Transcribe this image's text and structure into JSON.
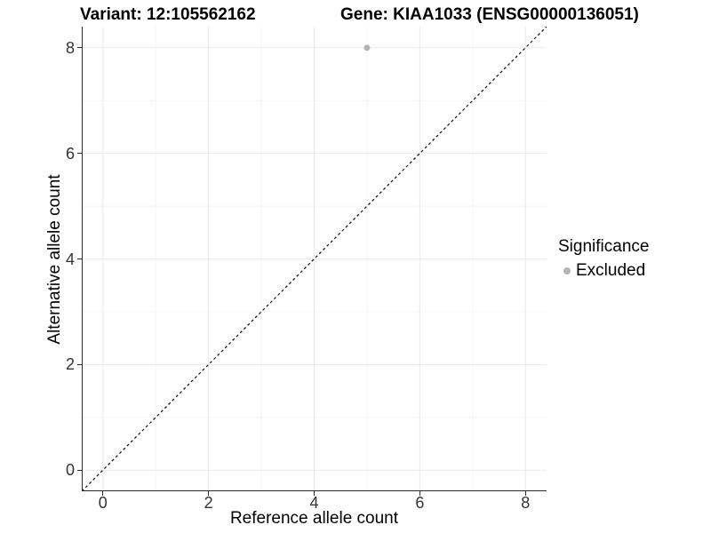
{
  "chart_data": {
    "type": "scatter",
    "title_left": "Variant: 12:105562162",
    "title_right": "Gene: KIAA1033 (ENSG00000136051)",
    "xlabel": "Reference allele count",
    "ylabel": "Alternative allele count",
    "xlim": [
      -0.4,
      8.4
    ],
    "ylim": [
      -0.4,
      8.4
    ],
    "x_ticks": [
      0,
      2,
      4,
      6,
      8
    ],
    "y_ticks": [
      0,
      2,
      4,
      6,
      8
    ],
    "x_minor_ticks": [
      1,
      3,
      5,
      7
    ],
    "y_minor_ticks": [
      1,
      3,
      5,
      7
    ],
    "grid": "major+minor",
    "reference_line": {
      "slope": 1,
      "intercept": 0,
      "style": "dashed",
      "color": "#000000"
    },
    "series": [
      {
        "name": "Excluded",
        "color": "#b4b4b4",
        "points": [
          {
            "x": 5,
            "y": 8
          }
        ]
      }
    ],
    "legend": {
      "position": "right",
      "title": "Significance",
      "items": [
        {
          "label": "Excluded",
          "color": "#b4b4b4"
        }
      ]
    }
  },
  "colors": {
    "background": "#ffffff",
    "panel_background": "#ffffff",
    "major_grid": "#e9e9e9",
    "minor_grid": "#f4f4f4",
    "axis_line": "#2b2b2b",
    "tick_text": "#333333",
    "title_text": "#000000"
  }
}
